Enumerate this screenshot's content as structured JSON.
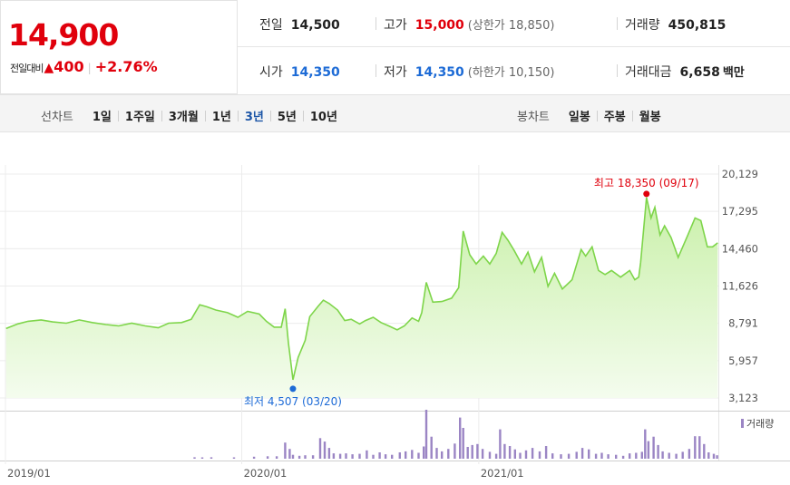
{
  "quote": {
    "price": "14,900",
    "change_label": "전일대비",
    "change_arrow": "▲",
    "change_value": "400",
    "change_pct": "+2.76%",
    "prev_label": "전일",
    "prev_value": "14,500",
    "high_label": "고가",
    "high_value": "15,000",
    "upper_limit_label": "(상한가 18,850)",
    "volume_label": "거래량",
    "volume_value": "450,815",
    "open_label": "시가",
    "open_value": "14,350",
    "low_label": "저가",
    "low_value": "14,350",
    "lower_limit_label": "(하한가 10,150)",
    "amount_label": "거래대금",
    "amount_value": "6,658",
    "amount_unit": "백만",
    "colors": {
      "up": "#e0000c",
      "down": "#1d6bd6"
    }
  },
  "line_tabs": {
    "heading": "선차트",
    "items": [
      "1일",
      "1주일",
      "3개월",
      "1년",
      "3년",
      "5년",
      "10년"
    ],
    "active": "3년"
  },
  "candle_tabs": {
    "heading": "봉차트",
    "items": [
      "일봉",
      "주봉",
      "월봉"
    ]
  },
  "chart_data": {
    "type": "area",
    "y_ticks": [
      "20,129",
      "17,295",
      "14,460",
      "11,626",
      "8,791",
      "5,957",
      "3,123"
    ],
    "ylim": [
      3123,
      20129
    ],
    "x_ticks": [
      "2019/01",
      "2020/01",
      "2021/01"
    ],
    "annotations": {
      "high": {
        "text": "최고 18,350 (09/17)",
        "x": "2021-09-17",
        "y": 18350
      },
      "low": {
        "text": "최저 4,507 (03/20)",
        "x": "2020-03-20",
        "y": 4507
      }
    },
    "volume_legend": "거래량",
    "colors": {
      "line": "#7ed54a",
      "fill_top": "#c9f0a9",
      "fill_bottom": "#f4fcee",
      "volume": "#9b85c4",
      "high": "#e0000c",
      "low": "#1d6bd6"
    },
    "series": [
      {
        "x": "2019-01-02",
        "y": 8400
      },
      {
        "x": "2019-01-20",
        "y": 8750
      },
      {
        "x": "2019-02-05",
        "y": 8950
      },
      {
        "x": "2019-02-25",
        "y": 9050
      },
      {
        "x": "2019-03-15",
        "y": 8900
      },
      {
        "x": "2019-04-05",
        "y": 8800
      },
      {
        "x": "2019-04-25",
        "y": 9050
      },
      {
        "x": "2019-05-15",
        "y": 8850
      },
      {
        "x": "2019-06-05",
        "y": 8700
      },
      {
        "x": "2019-06-25",
        "y": 8600
      },
      {
        "x": "2019-07-15",
        "y": 8800
      },
      {
        "x": "2019-08-05",
        "y": 8600
      },
      {
        "x": "2019-08-25",
        "y": 8450
      },
      {
        "x": "2019-09-10",
        "y": 8800
      },
      {
        "x": "2019-09-30",
        "y": 8850
      },
      {
        "x": "2019-10-15",
        "y": 9100
      },
      {
        "x": "2019-10-28",
        "y": 10200
      },
      {
        "x": "2019-11-08",
        "y": 10050
      },
      {
        "x": "2019-11-22",
        "y": 9800
      },
      {
        "x": "2019-12-10",
        "y": 9600
      },
      {
        "x": "2019-12-26",
        "y": 9250
      },
      {
        "x": "2020-01-10",
        "y": 9700
      },
      {
        "x": "2020-01-28",
        "y": 9500
      },
      {
        "x": "2020-02-08",
        "y": 8950
      },
      {
        "x": "2020-02-20",
        "y": 8500
      },
      {
        "x": "2020-03-02",
        "y": 8500
      },
      {
        "x": "2020-03-08",
        "y": 9900
      },
      {
        "x": "2020-03-13",
        "y": 7300
      },
      {
        "x": "2020-03-20",
        "y": 4507
      },
      {
        "x": "2020-03-28",
        "y": 6200
      },
      {
        "x": "2020-04-08",
        "y": 7500
      },
      {
        "x": "2020-04-15",
        "y": 9300
      },
      {
        "x": "2020-04-28",
        "y": 10100
      },
      {
        "x": "2020-05-06",
        "y": 10550
      },
      {
        "x": "2020-05-15",
        "y": 10300
      },
      {
        "x": "2020-05-28",
        "y": 9800
      },
      {
        "x": "2020-06-08",
        "y": 9000
      },
      {
        "x": "2020-06-18",
        "y": 9100
      },
      {
        "x": "2020-07-01",
        "y": 8750
      },
      {
        "x": "2020-07-10",
        "y": 9000
      },
      {
        "x": "2020-07-22",
        "y": 9250
      },
      {
        "x": "2020-08-03",
        "y": 8850
      },
      {
        "x": "2020-08-15",
        "y": 8600
      },
      {
        "x": "2020-08-28",
        "y": 8300
      },
      {
        "x": "2020-09-08",
        "y": 8600
      },
      {
        "x": "2020-09-20",
        "y": 9200
      },
      {
        "x": "2020-09-30",
        "y": 8950
      },
      {
        "x": "2020-10-05",
        "y": 9600
      },
      {
        "x": "2020-10-12",
        "y": 11900
      },
      {
        "x": "2020-10-22",
        "y": 10400
      },
      {
        "x": "2020-11-05",
        "y": 10450
      },
      {
        "x": "2020-11-20",
        "y": 10700
      },
      {
        "x": "2020-12-01",
        "y": 11500
      },
      {
        "x": "2020-12-08",
        "y": 15800
      },
      {
        "x": "2020-12-18",
        "y": 14000
      },
      {
        "x": "2020-12-28",
        "y": 13300
      },
      {
        "x": "2021-01-08",
        "y": 13900
      },
      {
        "x": "2021-01-18",
        "y": 13300
      },
      {
        "x": "2021-01-28",
        "y": 14100
      },
      {
        "x": "2021-02-06",
        "y": 15700
      },
      {
        "x": "2021-02-15",
        "y": 15100
      },
      {
        "x": "2021-02-25",
        "y": 14300
      },
      {
        "x": "2021-03-08",
        "y": 13300
      },
      {
        "x": "2021-03-18",
        "y": 14200
      },
      {
        "x": "2021-03-28",
        "y": 12700
      },
      {
        "x": "2021-04-08",
        "y": 13800
      },
      {
        "x": "2021-04-18",
        "y": 11600
      },
      {
        "x": "2021-04-28",
        "y": 12600
      },
      {
        "x": "2021-05-10",
        "y": 11400
      },
      {
        "x": "2021-05-25",
        "y": 12100
      },
      {
        "x": "2021-06-08",
        "y": 14400
      },
      {
        "x": "2021-06-15",
        "y": 13900
      },
      {
        "x": "2021-06-25",
        "y": 14600
      },
      {
        "x": "2021-07-05",
        "y": 12800
      },
      {
        "x": "2021-07-15",
        "y": 12500
      },
      {
        "x": "2021-07-25",
        "y": 12800
      },
      {
        "x": "2021-08-08",
        "y": 12300
      },
      {
        "x": "2021-08-22",
        "y": 12800
      },
      {
        "x": "2021-08-30",
        "y": 12100
      },
      {
        "x": "2021-09-05",
        "y": 12300
      },
      {
        "x": "2021-09-08",
        "y": 13400
      },
      {
        "x": "2021-09-17",
        "y": 18350
      },
      {
        "x": "2021-09-24",
        "y": 16800
      },
      {
        "x": "2021-09-30",
        "y": 17600
      },
      {
        "x": "2021-10-08",
        "y": 15500
      },
      {
        "x": "2021-10-15",
        "y": 16200
      },
      {
        "x": "2021-10-25",
        "y": 15300
      },
      {
        "x": "2021-11-05",
        "y": 13800
      },
      {
        "x": "2021-11-20",
        "y": 15500
      },
      {
        "x": "2021-12-01",
        "y": 16800
      },
      {
        "x": "2021-12-10",
        "y": 16600
      },
      {
        "x": "2021-12-20",
        "y": 14600
      },
      {
        "x": "2021-12-28",
        "y": 14600
      },
      {
        "x": "2022-01-05",
        "y": 14900
      }
    ],
    "volume": [
      {
        "x": "2019-10-20",
        "v": 0.03
      },
      {
        "x": "2019-11-01",
        "v": 0.02
      },
      {
        "x": "2019-11-15",
        "v": 0.03
      },
      {
        "x": "2019-12-20",
        "v": 0.02
      },
      {
        "x": "2020-01-20",
        "v": 0.04
      },
      {
        "x": "2020-02-10",
        "v": 0.05
      },
      {
        "x": "2020-02-24",
        "v": 0.05
      },
      {
        "x": "2020-03-08",
        "v": 0.33
      },
      {
        "x": "2020-03-15",
        "v": 0.2
      },
      {
        "x": "2020-03-20",
        "v": 0.08
      },
      {
        "x": "2020-03-30",
        "v": 0.06
      },
      {
        "x": "2020-04-08",
        "v": 0.07
      },
      {
        "x": "2020-04-20",
        "v": 0.07
      },
      {
        "x": "2020-05-01",
        "v": 0.42
      },
      {
        "x": "2020-05-08",
        "v": 0.35
      },
      {
        "x": "2020-05-15",
        "v": 0.22
      },
      {
        "x": "2020-05-22",
        "v": 0.11
      },
      {
        "x": "2020-06-01",
        "v": 0.1
      },
      {
        "x": "2020-06-10",
        "v": 0.11
      },
      {
        "x": "2020-06-20",
        "v": 0.09
      },
      {
        "x": "2020-07-01",
        "v": 0.1
      },
      {
        "x": "2020-07-12",
        "v": 0.17
      },
      {
        "x": "2020-07-22",
        "v": 0.08
      },
      {
        "x": "2020-08-01",
        "v": 0.13
      },
      {
        "x": "2020-08-10",
        "v": 0.09
      },
      {
        "x": "2020-08-20",
        "v": 0.08
      },
      {
        "x": "2020-09-01",
        "v": 0.13
      },
      {
        "x": "2020-09-10",
        "v": 0.15
      },
      {
        "x": "2020-09-20",
        "v": 0.18
      },
      {
        "x": "2020-09-30",
        "v": 0.12
      },
      {
        "x": "2020-10-08",
        "v": 0.25
      },
      {
        "x": "2020-10-12",
        "v": 1.0
      },
      {
        "x": "2020-10-20",
        "v": 0.45
      },
      {
        "x": "2020-10-28",
        "v": 0.22
      },
      {
        "x": "2020-11-05",
        "v": 0.15
      },
      {
        "x": "2020-11-15",
        "v": 0.2
      },
      {
        "x": "2020-11-25",
        "v": 0.31
      },
      {
        "x": "2020-12-03",
        "v": 0.84
      },
      {
        "x": "2020-12-08",
        "v": 0.63
      },
      {
        "x": "2020-12-15",
        "v": 0.24
      },
      {
        "x": "2020-12-22",
        "v": 0.28
      },
      {
        "x": "2020-12-30",
        "v": 0.3
      },
      {
        "x": "2021-01-07",
        "v": 0.2
      },
      {
        "x": "2021-01-18",
        "v": 0.14
      },
      {
        "x": "2021-01-28",
        "v": 0.1
      },
      {
        "x": "2021-02-03",
        "v": 0.6
      },
      {
        "x": "2021-02-10",
        "v": 0.3
      },
      {
        "x": "2021-02-18",
        "v": 0.26
      },
      {
        "x": "2021-02-26",
        "v": 0.19
      },
      {
        "x": "2021-03-06",
        "v": 0.12
      },
      {
        "x": "2021-03-15",
        "v": 0.17
      },
      {
        "x": "2021-03-25",
        "v": 0.22
      },
      {
        "x": "2021-04-05",
        "v": 0.15
      },
      {
        "x": "2021-04-15",
        "v": 0.26
      },
      {
        "x": "2021-04-25",
        "v": 0.11
      },
      {
        "x": "2021-05-08",
        "v": 0.09
      },
      {
        "x": "2021-05-20",
        "v": 0.1
      },
      {
        "x": "2021-06-01",
        "v": 0.14
      },
      {
        "x": "2021-06-10",
        "v": 0.22
      },
      {
        "x": "2021-06-20",
        "v": 0.19
      },
      {
        "x": "2021-07-01",
        "v": 0.1
      },
      {
        "x": "2021-07-10",
        "v": 0.12
      },
      {
        "x": "2021-07-20",
        "v": 0.09
      },
      {
        "x": "2021-08-01",
        "v": 0.08
      },
      {
        "x": "2021-08-12",
        "v": 0.06
      },
      {
        "x": "2021-08-22",
        "v": 0.11
      },
      {
        "x": "2021-09-01",
        "v": 0.12
      },
      {
        "x": "2021-09-10",
        "v": 0.14
      },
      {
        "x": "2021-09-15",
        "v": 0.6
      },
      {
        "x": "2021-09-20",
        "v": 0.36
      },
      {
        "x": "2021-09-28",
        "v": 0.45
      },
      {
        "x": "2021-10-05",
        "v": 0.28
      },
      {
        "x": "2021-10-12",
        "v": 0.15
      },
      {
        "x": "2021-10-22",
        "v": 0.12
      },
      {
        "x": "2021-11-02",
        "v": 0.1
      },
      {
        "x": "2021-11-12",
        "v": 0.14
      },
      {
        "x": "2021-11-22",
        "v": 0.2
      },
      {
        "x": "2021-12-01",
        "v": 0.46
      },
      {
        "x": "2021-12-08",
        "v": 0.46
      },
      {
        "x": "2021-12-15",
        "v": 0.3
      },
      {
        "x": "2021-12-22",
        "v": 0.13
      },
      {
        "x": "2021-12-30",
        "v": 0.1
      },
      {
        "x": "2022-01-04",
        "v": 0.07
      }
    ]
  }
}
